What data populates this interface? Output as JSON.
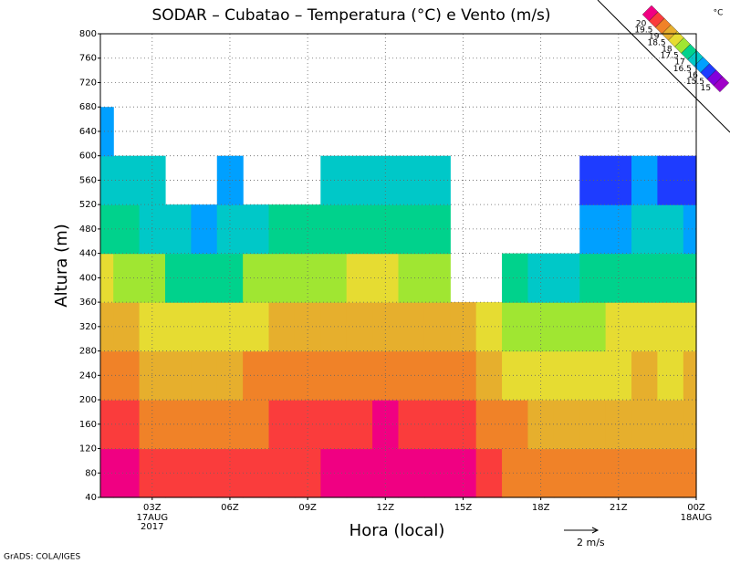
{
  "chart_data": {
    "type": "contour",
    "title": "SODAR – Cubatao – Temperatura (°C) e Vento (m/s)",
    "ylabel": "Altura (m)",
    "xlabel": "Hora (local)",
    "footer": "GrADS: COLA/IGES",
    "wind_scale": "2 m/s",
    "date_labels": [
      {
        "x": 3,
        "lines": [
          "17AUG",
          "2017"
        ]
      },
      {
        "x": 24,
        "lines": [
          "18AUG"
        ]
      }
    ],
    "colorbar_unit": "°C",
    "levels": [
      15,
      15.5,
      16,
      16.5,
      17,
      17.5,
      18,
      18.5,
      19,
      19.5,
      20
    ],
    "colors": [
      "#a000c8",
      "#8200dc",
      "#1e3cff",
      "#00a0ff",
      "#00c8c8",
      "#00d28c",
      "#a0e632",
      "#e6dc32",
      "#e6af2d",
      "#f08228",
      "#fa3c3c",
      "#f00082"
    ],
    "xlim": [
      1,
      24
    ],
    "ylim": [
      40,
      800
    ],
    "xticks": [
      {
        "value": 3,
        "label": "03Z"
      },
      {
        "value": 6,
        "label": "06Z"
      },
      {
        "value": 9,
        "label": "09Z"
      },
      {
        "value": 12,
        "label": "12Z"
      },
      {
        "value": 15,
        "label": "15Z"
      },
      {
        "value": 18,
        "label": "18Z"
      },
      {
        "value": 21,
        "label": "21Z"
      },
      {
        "value": 24,
        "label": "00Z"
      }
    ],
    "yticks": [
      40,
      80,
      120,
      160,
      200,
      240,
      280,
      320,
      360,
      400,
      440,
      480,
      520,
      560,
      600,
      640,
      680,
      720,
      760,
      800
    ],
    "grid": true,
    "x": [
      1,
      2,
      3,
      4,
      5,
      6,
      7,
      8,
      9,
      10,
      11,
      12,
      13,
      14,
      15,
      16,
      17,
      18,
      19,
      20,
      21,
      22,
      23,
      24
    ],
    "y": [
      40,
      120,
      200,
      280,
      360,
      440,
      520,
      600
    ],
    "z": [
      [
        20.1,
        20.0,
        19.7,
        19.5,
        19.5,
        19.6,
        19.7,
        19.8,
        19.9,
        20.1,
        20.2,
        20.3,
        20.2,
        20.0,
        20.1,
        19.7,
        19.4,
        19.4,
        19.3,
        19.3,
        19.2,
        19.4,
        19.2,
        19.3
      ],
      [
        19.8,
        19.7,
        19.4,
        19.2,
        19.2,
        19.3,
        19.4,
        19.5,
        19.6,
        19.8,
        19.9,
        20.0,
        19.9,
        19.7,
        19.8,
        19.3,
        19.0,
        18.9,
        18.8,
        18.9,
        18.9,
        18.9,
        18.9,
        18.9
      ],
      [
        19.3,
        19.2,
        18.9,
        18.8,
        18.8,
        18.9,
        19.0,
        19.1,
        19.2,
        19.4,
        19.4,
        19.3,
        19.2,
        19.1,
        19.3,
        18.8,
        18.4,
        18.3,
        18.2,
        18.4,
        18.4,
        18.5,
        18.4,
        18.5
      ],
      [
        18.8,
        18.5,
        18.2,
        18.1,
        18.2,
        18.3,
        18.4,
        18.5,
        18.6,
        18.7,
        18.8,
        18.7,
        18.6,
        18.5,
        18.6,
        18.0,
        17.6,
        17.6,
        17.7,
        17.9,
        18.0,
        18.1,
        18.0,
        18.0
      ],
      [
        18.0,
        17.8,
        17.5,
        17.3,
        17.3,
        17.4,
        17.5,
        17.6,
        17.8,
        17.9,
        18.0,
        18.0,
        17.9,
        17.8,
        null,
        null,
        17.0,
        16.8,
        16.9,
        17.0,
        17.1,
        17.4,
        17.2,
        17.0
      ],
      [
        17.4,
        17.0,
        16.9,
        16.6,
        16.4,
        16.6,
        16.8,
        17.0,
        17.0,
        17.2,
        17.2,
        17.2,
        17.1,
        17.0,
        null,
        null,
        null,
        null,
        null,
        16.2,
        16.4,
        16.7,
        16.5,
        16.3
      ],
      [
        16.9,
        16.5,
        16.5,
        null,
        null,
        16.2,
        null,
        null,
        null,
        16.6,
        16.6,
        16.7,
        16.6,
        16.5,
        null,
        null,
        null,
        null,
        null,
        15.6,
        15.7,
        16.0,
        15.9,
        15.8
      ],
      [
        16.4,
        null,
        null,
        null,
        null,
        null,
        null,
        null,
        null,
        null,
        null,
        null,
        null,
        null,
        null,
        null,
        null,
        null,
        null,
        null,
        null,
        null,
        null,
        null
      ]
    ]
  }
}
